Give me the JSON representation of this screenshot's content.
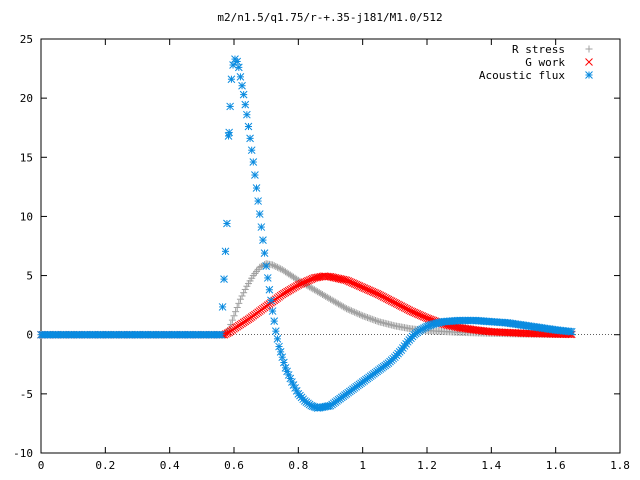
{
  "chart_data": {
    "type": "scatter",
    "title": "m2/n1.5/q1.75/r-+.35-j181/M1.0/512",
    "xlabel": "",
    "ylabel": "",
    "xlim": [
      0,
      1.8
    ],
    "ylim": [
      -10,
      25
    ],
    "xticks": [
      "0",
      "0.2",
      "0.4",
      "0.6",
      "0.8",
      "1",
      "1.2",
      "1.4",
      "1.6",
      "1.8"
    ],
    "yticks": [
      "-10",
      "-5",
      "0",
      "5",
      "10",
      "15",
      "20",
      "25"
    ],
    "legend_position": "top-right",
    "grid": false,
    "series": [
      {
        "name": "R stress",
        "marker": "+",
        "color": "#a0a0a0",
        "points": [
          [
            0.0,
            0
          ],
          [
            0.1,
            0
          ],
          [
            0.2,
            0
          ],
          [
            0.3,
            0
          ],
          [
            0.4,
            0
          ],
          [
            0.5,
            0
          ],
          [
            0.57,
            0
          ],
          [
            0.585,
            0.5
          ],
          [
            0.6,
            1.6
          ],
          [
            0.62,
            3.0
          ],
          [
            0.64,
            4.1
          ],
          [
            0.66,
            5.0
          ],
          [
            0.68,
            5.7
          ],
          [
            0.7,
            6.0
          ],
          [
            0.72,
            5.9
          ],
          [
            0.75,
            5.5
          ],
          [
            0.8,
            4.6
          ],
          [
            0.85,
            3.8
          ],
          [
            0.9,
            3.0
          ],
          [
            0.95,
            2.2
          ],
          [
            1.0,
            1.6
          ],
          [
            1.05,
            1.1
          ],
          [
            1.1,
            0.75
          ],
          [
            1.15,
            0.5
          ],
          [
            1.2,
            0.35
          ],
          [
            1.3,
            0.2
          ],
          [
            1.4,
            0.12
          ],
          [
            1.5,
            0.06
          ],
          [
            1.6,
            0.03
          ],
          [
            1.65,
            0.02
          ]
        ]
      },
      {
        "name": "G work",
        "marker": "x",
        "color": "#ff0000",
        "points": [
          [
            0.0,
            0
          ],
          [
            0.1,
            0
          ],
          [
            0.2,
            0
          ],
          [
            0.3,
            0
          ],
          [
            0.4,
            0
          ],
          [
            0.5,
            0
          ],
          [
            0.57,
            0
          ],
          [
            0.585,
            0.2
          ],
          [
            0.6,
            0.5
          ],
          [
            0.65,
            1.4
          ],
          [
            0.7,
            2.4
          ],
          [
            0.75,
            3.4
          ],
          [
            0.8,
            4.2
          ],
          [
            0.85,
            4.8
          ],
          [
            0.88,
            4.95
          ],
          [
            0.9,
            4.9
          ],
          [
            0.95,
            4.6
          ],
          [
            1.0,
            4.0
          ],
          [
            1.05,
            3.4
          ],
          [
            1.1,
            2.7
          ],
          [
            1.15,
            2.0
          ],
          [
            1.2,
            1.4
          ],
          [
            1.25,
            0.9
          ],
          [
            1.3,
            0.6
          ],
          [
            1.35,
            0.4
          ],
          [
            1.4,
            0.25
          ],
          [
            1.5,
            0.12
          ],
          [
            1.6,
            0.05
          ],
          [
            1.65,
            0.03
          ]
        ]
      },
      {
        "name": "Acoustic flux",
        "marker": "*",
        "color": "#0a8be0",
        "points": [
          [
            0.0,
            0
          ],
          [
            0.1,
            0
          ],
          [
            0.2,
            0
          ],
          [
            0.3,
            0
          ],
          [
            0.4,
            0
          ],
          [
            0.5,
            0
          ],
          [
            0.56,
            0
          ],
          [
            0.578,
            9.4
          ],
          [
            0.583,
            16.8
          ],
          [
            0.585,
            17.1
          ],
          [
            0.588,
            19.3
          ],
          [
            0.592,
            21.6
          ],
          [
            0.597,
            22.8
          ],
          [
            0.603,
            23.3
          ],
          [
            0.61,
            23.1
          ],
          [
            0.615,
            22.6
          ],
          [
            0.62,
            21.8
          ],
          [
            0.63,
            20.3
          ],
          [
            0.64,
            18.6
          ],
          [
            0.65,
            16.6
          ],
          [
            0.66,
            14.6
          ],
          [
            0.67,
            12.4
          ],
          [
            0.68,
            10.2
          ],
          [
            0.69,
            8.0
          ],
          [
            0.7,
            5.8
          ],
          [
            0.71,
            3.8
          ],
          [
            0.72,
            2.0
          ],
          [
            0.73,
            0.3
          ],
          [
            0.74,
            -1.0
          ],
          [
            0.76,
            -2.8
          ],
          [
            0.78,
            -4.0
          ],
          [
            0.8,
            -5.0
          ],
          [
            0.82,
            -5.6
          ],
          [
            0.84,
            -6.0
          ],
          [
            0.86,
            -6.2
          ],
          [
            0.88,
            -6.1
          ],
          [
            0.9,
            -6.0
          ],
          [
            0.92,
            -5.6
          ],
          [
            0.94,
            -5.2
          ],
          [
            0.96,
            -4.8
          ],
          [
            0.98,
            -4.4
          ],
          [
            1.0,
            -4.0
          ],
          [
            1.02,
            -3.6
          ],
          [
            1.04,
            -3.2
          ],
          [
            1.06,
            -2.8
          ],
          [
            1.08,
            -2.4
          ],
          [
            1.1,
            -1.9
          ],
          [
            1.12,
            -1.3
          ],
          [
            1.14,
            -0.6
          ],
          [
            1.16,
            0.0
          ],
          [
            1.18,
            0.4
          ],
          [
            1.2,
            0.7
          ],
          [
            1.22,
            0.9
          ],
          [
            1.25,
            1.1
          ],
          [
            1.3,
            1.2
          ],
          [
            1.35,
            1.2
          ],
          [
            1.4,
            1.1
          ],
          [
            1.45,
            1.0
          ],
          [
            1.5,
            0.8
          ],
          [
            1.55,
            0.6
          ],
          [
            1.6,
            0.4
          ],
          [
            1.65,
            0.25
          ]
        ]
      }
    ]
  }
}
